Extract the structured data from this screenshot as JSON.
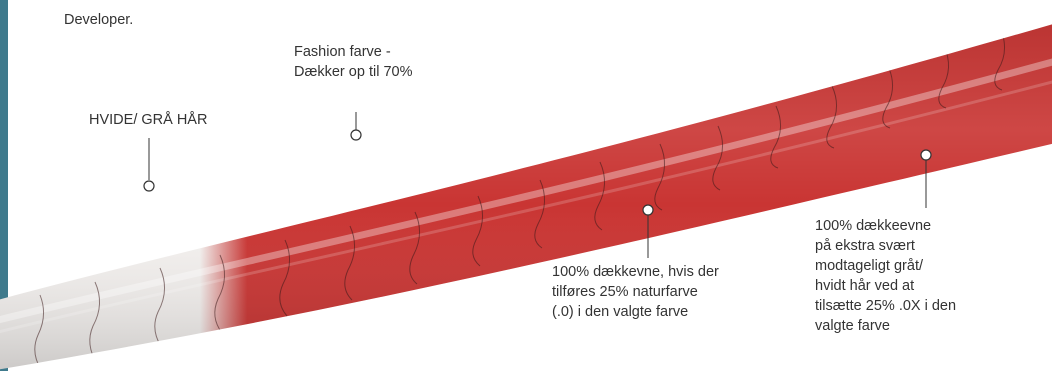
{
  "intro_text": "Developer.",
  "labels": {
    "fashion_color": [
      "Fashion farve -",
      "Dækker op til 70%"
    ],
    "white_grey_hair": "HVIDE/ GRÅ HÅR",
    "coverage_natural": [
      "100% dækkevne, hvis der",
      "tilføres 25% naturfarve",
      "(.0) i den valgte farve"
    ],
    "coverage_extra": [
      "100% dækkeevne",
      "på ekstra svært",
      "modtageligt gråt/",
      "hvidt hår ved at",
      "tilsætte 25% .0X i den",
      "valgte farve"
    ]
  },
  "colors": {
    "hair_red": "#c93533",
    "hair_white": "#f3f0ee",
    "side_accent": "#3f7a8c",
    "text": "#333333",
    "pointer": "#333333"
  }
}
